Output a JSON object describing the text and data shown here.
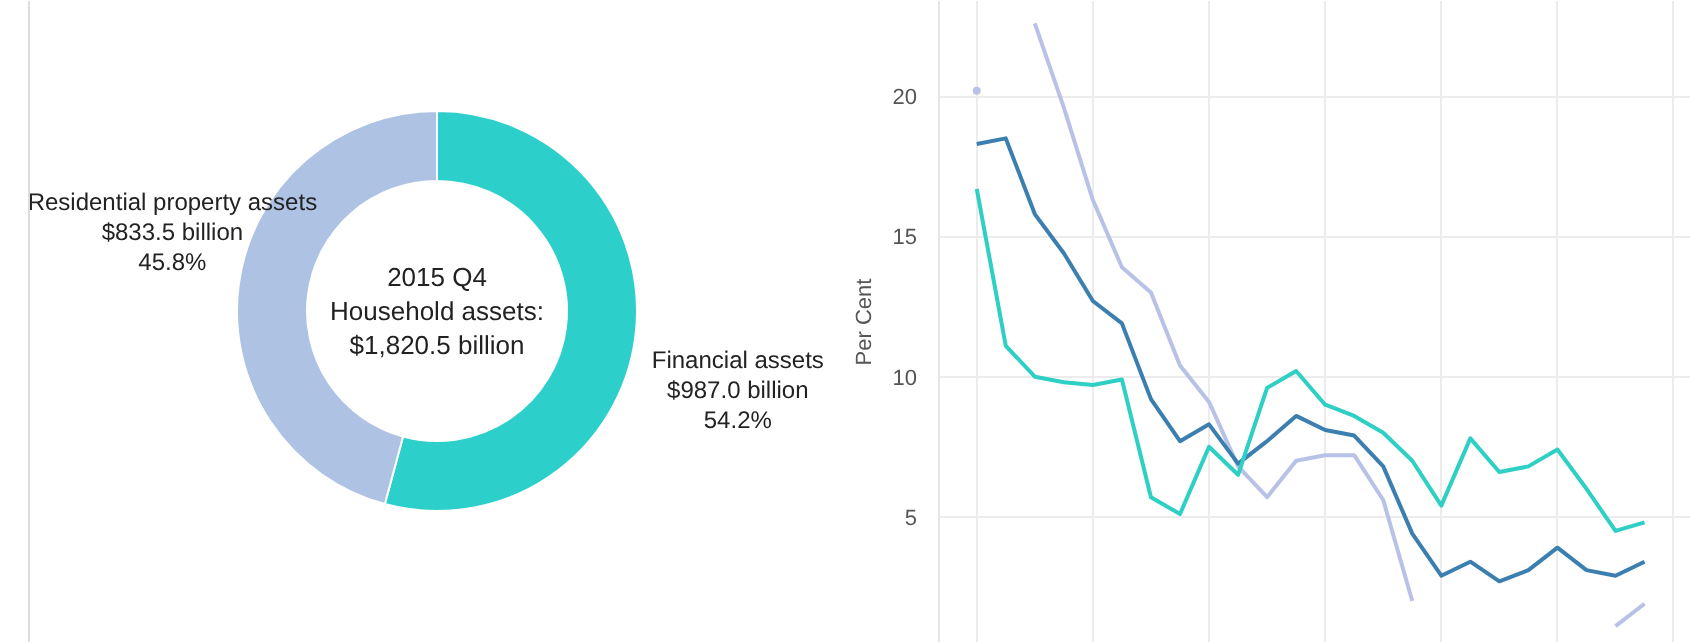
{
  "chart_data": [
    {
      "type": "donut",
      "title": "2015 Q4\nHousehold assets:\n$1,820.5 billion",
      "categories": [
        "Financial assets",
        "Residential property assets"
      ],
      "values": [
        54.2,
        45.8
      ],
      "colors": [
        "#2ccfc9",
        "#aec2e4"
      ],
      "value_labels": [
        "54.2%",
        "45.8%"
      ],
      "annotations": [
        {
          "text": "$987.0 billion",
          "x": "Financial assets"
        },
        {
          "text": "$833.5 billion",
          "x": "Residential property assets"
        }
      ]
    },
    {
      "type": "line",
      "ylabel": "Per Cent",
      "categories": [
        null,
        null,
        null,
        null,
        null,
        null,
        null,
        null,
        null,
        null,
        null,
        null,
        null,
        null,
        null,
        null,
        null,
        null,
        null,
        null,
        null,
        null,
        null,
        null
      ],
      "series": [
        {
          "color": "#b8c2e6",
          "values": [
            20.2,
            null,
            22.6,
            19.6,
            16.3,
            13.9,
            13.0,
            10.4,
            9.1,
            6.8,
            5.7,
            7.0,
            7.2,
            7.2,
            5.6,
            2.0,
            null,
            null,
            null,
            null,
            null,
            null,
            1.1,
            1.9
          ]
        },
        {
          "color": "#3b7fb0",
          "values": [
            18.3,
            18.5,
            15.8,
            14.4,
            12.7,
            11.9,
            9.2,
            7.7,
            8.3,
            6.9,
            7.7,
            8.6,
            8.1,
            7.9,
            6.8,
            4.4,
            2.9,
            3.4,
            2.7,
            3.1,
            3.9,
            3.1,
            2.9,
            3.4
          ]
        },
        {
          "color": "#2ecfc4",
          "values": [
            16.7,
            11.1,
            10.0,
            9.8,
            9.7,
            9.9,
            5.7,
            5.1,
            7.5,
            6.5,
            9.6,
            10.2,
            9.0,
            8.6,
            8.0,
            7.0,
            5.4,
            7.8,
            6.6,
            6.8,
            7.4,
            6.0,
            4.5,
            4.8
          ]
        }
      ],
      "ylim": [
        0.5,
        23.4
      ],
      "yticks": [
        5,
        10,
        15,
        20
      ],
      "grid": true,
      "tick_labels": "y",
      "line_style": "solid"
    }
  ]
}
